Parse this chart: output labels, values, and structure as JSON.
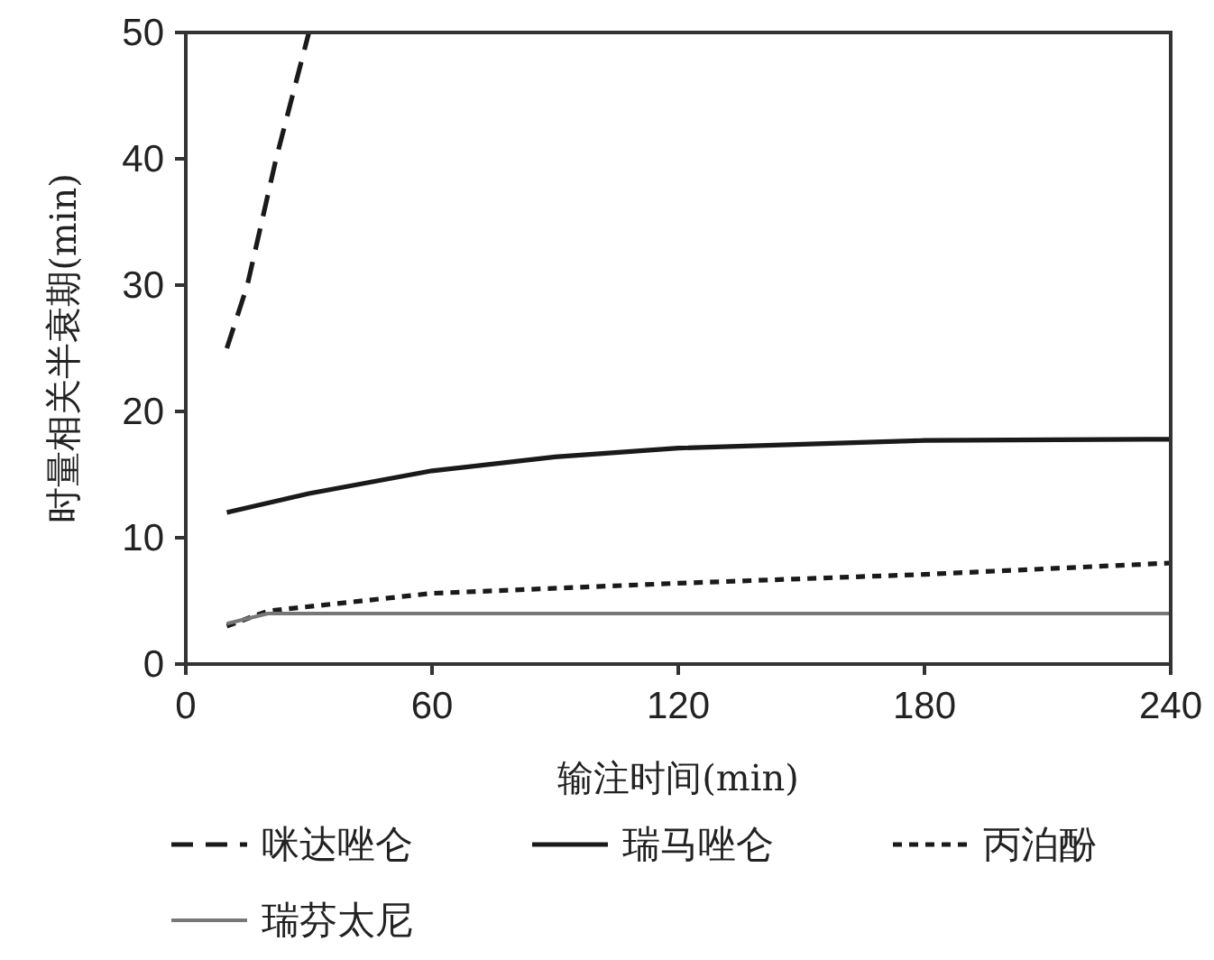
{
  "chart_data": {
    "type": "line",
    "xlabel": "输注时间(min)",
    "ylabel": "时量相关半衰期(min)",
    "xlim": [
      0,
      240
    ],
    "ylim": [
      0,
      50
    ],
    "xticks": [
      0,
      60,
      120,
      180,
      240
    ],
    "yticks": [
      0,
      10,
      20,
      30,
      40,
      50
    ],
    "grid": false,
    "legend": "bottom",
    "marker": "none",
    "series": [
      {
        "name": "咪达唑仑",
        "color": "#1a1a1a",
        "line_style": "dashed",
        "x": [
          10,
          15,
          22,
          30
        ],
        "values": [
          25,
          30,
          40,
          50
        ]
      },
      {
        "name": "瑞马唑仑",
        "color": "#1a1a1a",
        "line_style": "solid",
        "x": [
          10,
          30,
          60,
          90,
          120,
          180,
          240
        ],
        "values": [
          12,
          13.5,
          15.3,
          16.4,
          17.1,
          17.7,
          17.8
        ]
      },
      {
        "name": "丙泊酚",
        "color": "#1a1a1a",
        "line_style": "dotted",
        "x": [
          10,
          20,
          60,
          120,
          180,
          240
        ],
        "values": [
          3,
          4.2,
          5.6,
          6.4,
          7.1,
          8
        ]
      },
      {
        "name": "瑞芬太尼",
        "color": "#777777",
        "line_style": "solid",
        "x": [
          10,
          20,
          240
        ],
        "values": [
          3.2,
          4,
          4
        ]
      }
    ]
  }
}
